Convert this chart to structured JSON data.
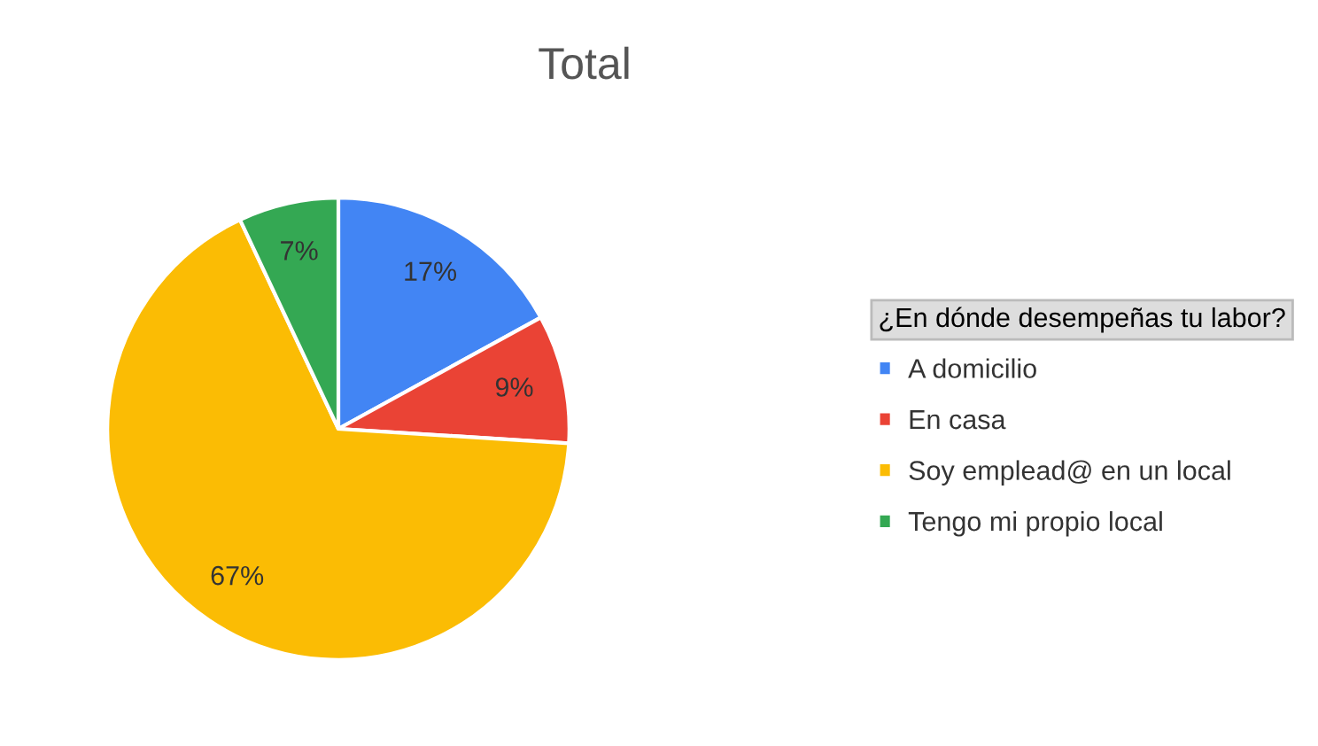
{
  "chart_data": {
    "type": "pie",
    "title": "Total",
    "legend_title": "¿En dónde desempeñas tu labor?",
    "categories": [
      "A domicilio",
      "En casa",
      "Soy emplead@ en un local",
      "Tengo mi propio local"
    ],
    "values": [
      17,
      9,
      67,
      7
    ],
    "colors": [
      "#4285f4",
      "#ea4335",
      "#fbbc04",
      "#34a853"
    ],
    "value_labels": [
      "17%",
      "9%",
      "67%",
      "7%"
    ],
    "legend": "right"
  }
}
